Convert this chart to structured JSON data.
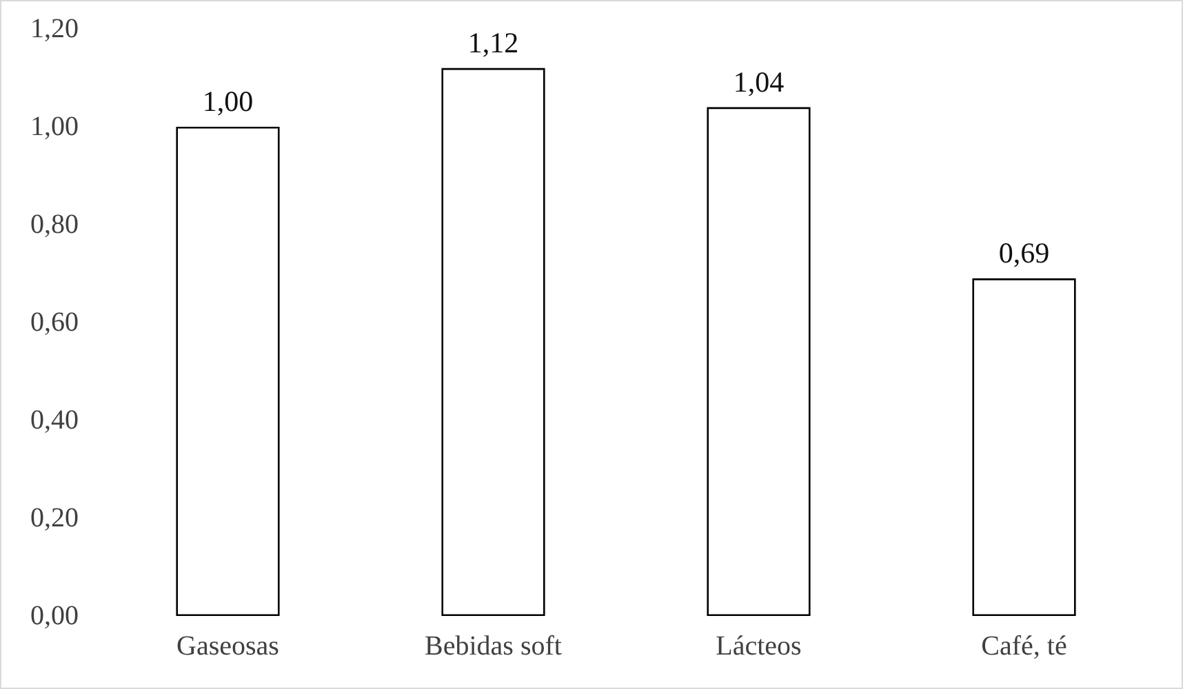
{
  "chart_data": {
    "type": "bar",
    "categories": [
      "Gaseosas",
      "Bebidas soft",
      "Lácteos",
      "Café, té"
    ],
    "values": [
      1.0,
      1.12,
      1.04,
      0.69
    ],
    "value_labels": [
      "1,00",
      "1,12",
      "1,04",
      "0,69"
    ],
    "color": "#ffffff",
    "ylim": [
      0,
      1.2
    ],
    "yticks": [
      {
        "value": 0,
        "label": "0,00"
      },
      {
        "value": 0.2,
        "label": "0,20"
      },
      {
        "value": 0.4,
        "label": "0,40"
      },
      {
        "value": 0.6,
        "label": "0,60"
      },
      {
        "value": 0.8,
        "label": "0,80"
      },
      {
        "value": 1.0,
        "label": "1,00"
      },
      {
        "value": 1.2,
        "label": "1,20"
      }
    ],
    "grid": false
  }
}
